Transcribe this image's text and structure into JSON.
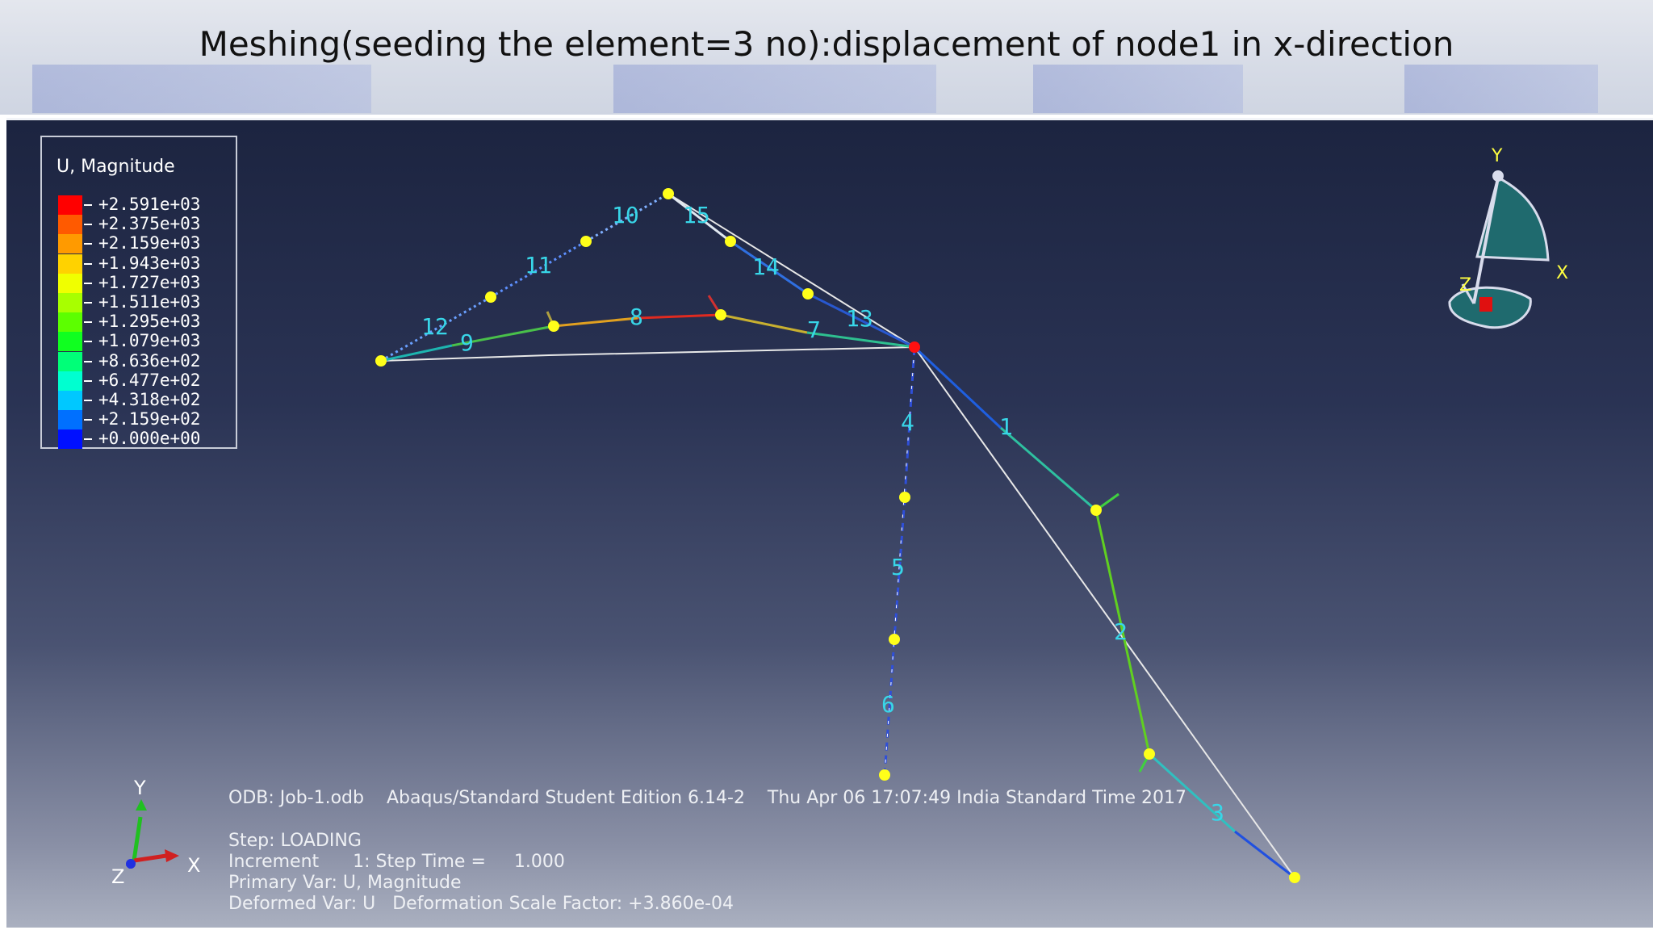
{
  "slide": {
    "title": "Meshing(seeding the element=3 no):displacement of node1 in x-direction"
  },
  "legend": {
    "title": "U, Magnitude",
    "entries": [
      {
        "label": "+2.591e+03",
        "color": "#ff0000"
      },
      {
        "label": "+2.375e+03",
        "color": "#ff5a00"
      },
      {
        "label": "+2.159e+03",
        "color": "#ff9a00"
      },
      {
        "label": "+1.943e+03",
        "color": "#ffd200"
      },
      {
        "label": "+1.727e+03",
        "color": "#f0ff00"
      },
      {
        "label": "+1.511e+03",
        "color": "#a8ff00"
      },
      {
        "label": "+1.295e+03",
        "color": "#5cff00"
      },
      {
        "label": "+1.079e+03",
        "color": "#10ff20"
      },
      {
        "label": "+8.636e+02",
        "color": "#00ff78"
      },
      {
        "label": "+6.477e+02",
        "color": "#00ffd0"
      },
      {
        "label": "+4.318e+02",
        "color": "#00c8ff"
      },
      {
        "label": "+2.159e+02",
        "color": "#0070ff"
      },
      {
        "label": "+0.000e+00",
        "color": "#0010ff"
      }
    ]
  },
  "elements": [
    "1",
    "2",
    "3",
    "4",
    "5",
    "6",
    "7",
    "8",
    "9",
    "10",
    "11",
    "12",
    "13",
    "14",
    "15"
  ],
  "triad_view": {
    "y": "Y",
    "x": "X",
    "z": "Z"
  },
  "triad_axes": {
    "y": "Y",
    "x": "X",
    "z": "Z"
  },
  "info": {
    "odb_line": "ODB: Job-1.odb    Abaqus/Standard Student Edition 6.14-2    Thu Apr 06 17:07:49 India Standard Time 2017",
    "step": "Step: LOADING",
    "increment": "Increment      1: Step Time =     1.000",
    "primary_var": "Primary Var: U, Magnitude",
    "deformed_var": "Deformed Var: U   Deformation Scale Factor: +3.860e-04"
  },
  "colors": {
    "node": "#ffff1a",
    "node_selected": "#ff1010",
    "label": "#38d6e8",
    "undeformed": "#e8e8e8"
  }
}
